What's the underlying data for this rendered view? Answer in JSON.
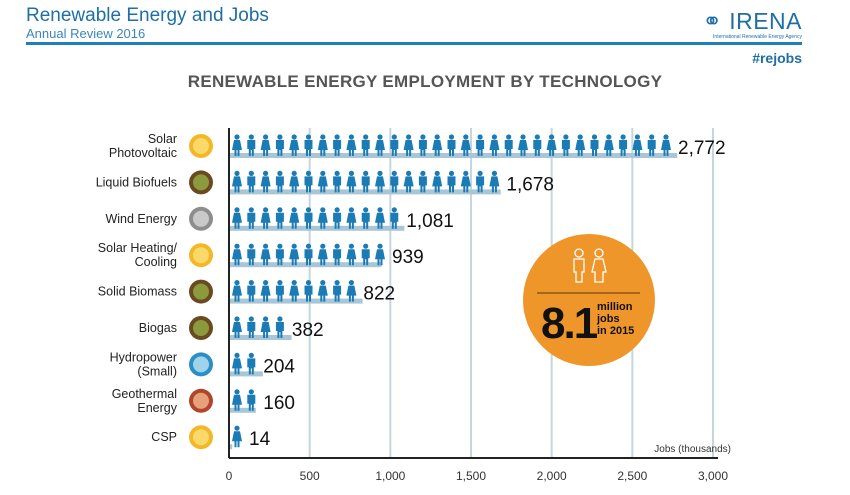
{
  "header": {
    "title": "Renewable Energy and Jobs",
    "subtitle": "Annual Review 2016",
    "logo_text": "IRENA",
    "logo_subtext": "International Renewable Energy Agency",
    "hashtag": "#rejobs"
  },
  "colors": {
    "brand": "#1d6fa5",
    "people": "#1a7bb5",
    "bar": "#a9c6d6",
    "grid": "#c5d6df",
    "badge": "#ef962b"
  },
  "chart_data": {
    "type": "bar",
    "orientation": "horizontal",
    "title": "RENEWABLE ENERGY EMPLOYMENT BY TECHNOLOGY",
    "xlabel": "Jobs (thousands)",
    "xlim": [
      0,
      3000
    ],
    "xticks": [
      0,
      500,
      1000,
      1500,
      2000,
      2500,
      3000
    ],
    "xtick_labels": [
      "0",
      "500",
      "1,000",
      "1,500",
      "2,000",
      "2,500",
      "3,000"
    ],
    "grid": true,
    "categories": [
      "Solar Photovoltaic",
      "Liquid Biofuels",
      "Wind Energy",
      "Solar Heating/ Cooling",
      "Solid Biomass",
      "Biogas",
      "Hydropower (Small)",
      "Geothermal Energy",
      "CSP"
    ],
    "category_icons": [
      "sun-icon",
      "leaf-icon",
      "wind-icon",
      "sun-icon",
      "leaf-icon",
      "leaf-icon",
      "water-drop-icon",
      "volcano-icon",
      "sun-icon"
    ],
    "values": [
      2772,
      1678,
      1081,
      939,
      822,
      382,
      204,
      160,
      14
    ],
    "value_labels": [
      "2,772",
      "1,678",
      "1,081",
      "939",
      "822",
      "382",
      "204",
      "160",
      "14"
    ]
  },
  "badge": {
    "value": "8.1",
    "line1": "million",
    "line2": "jobs",
    "line3": "in 2015"
  }
}
